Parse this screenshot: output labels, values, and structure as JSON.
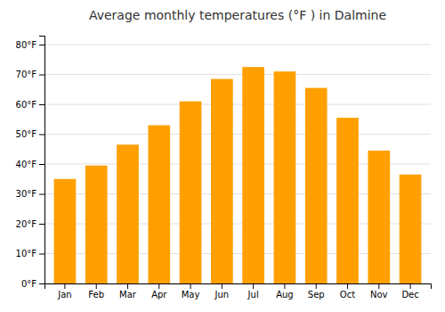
{
  "chart_data": {
    "type": "bar",
    "title": "Average monthly temperatures (°F ) in Dalmine",
    "categories": [
      "Jan",
      "Feb",
      "Mar",
      "Apr",
      "May",
      "Jun",
      "Jul",
      "Aug",
      "Sep",
      "Oct",
      "Nov",
      "Dec"
    ],
    "values": [
      35,
      39.5,
      46.5,
      53,
      61,
      68.5,
      72.5,
      71,
      65.5,
      55.5,
      44.5,
      36.5
    ],
    "color": "#FFA000",
    "ylim": [
      0,
      83
    ],
    "yticks": [
      {
        "value": 0,
        "label": "0°F"
      },
      {
        "value": 10,
        "label": "10°F"
      },
      {
        "value": 20,
        "label": "20°F"
      },
      {
        "value": 30,
        "label": "30°F"
      },
      {
        "value": 40,
        "label": "40°F"
      },
      {
        "value": 50,
        "label": "50°F"
      },
      {
        "value": 60,
        "label": "60°F"
      },
      {
        "value": 70,
        "label": "70°F"
      },
      {
        "value": 80,
        "label": "80°F"
      }
    ],
    "grid": true
  }
}
